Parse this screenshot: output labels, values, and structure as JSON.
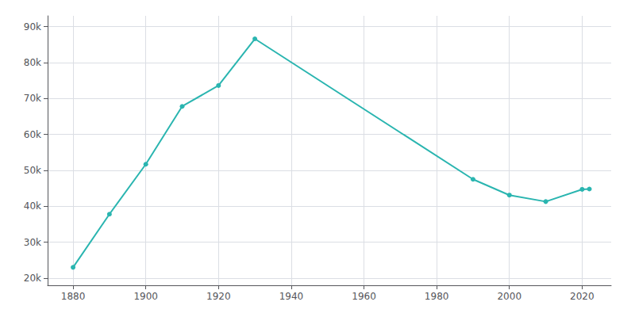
{
  "chart_data": {
    "type": "line",
    "x": [
      1880,
      1890,
      1900,
      1910,
      1920,
      1930,
      1990,
      2000,
      2010,
      2020,
      2022
    ],
    "values": [
      23000,
      37800,
      51700,
      67800,
      73600,
      86600,
      47500,
      43100,
      41300,
      44700,
      44800
    ],
    "color": "#2ab5b0",
    "marker": "circle",
    "xlim": [
      1873,
      2028
    ],
    "ylim": [
      18000,
      93000
    ],
    "xticks": [
      1880,
      1900,
      1920,
      1940,
      1960,
      1980,
      2000,
      2020
    ],
    "yticks": [
      {
        "value": 20000,
        "label": "20k"
      },
      {
        "value": 30000,
        "label": "30k"
      },
      {
        "value": 40000,
        "label": "40k"
      },
      {
        "value": 50000,
        "label": "50k"
      },
      {
        "value": 60000,
        "label": "60k"
      },
      {
        "value": 70000,
        "label": "70k"
      },
      {
        "value": 80000,
        "label": "80k"
      },
      {
        "value": 90000,
        "label": "90k"
      }
    ],
    "grid": true
  }
}
